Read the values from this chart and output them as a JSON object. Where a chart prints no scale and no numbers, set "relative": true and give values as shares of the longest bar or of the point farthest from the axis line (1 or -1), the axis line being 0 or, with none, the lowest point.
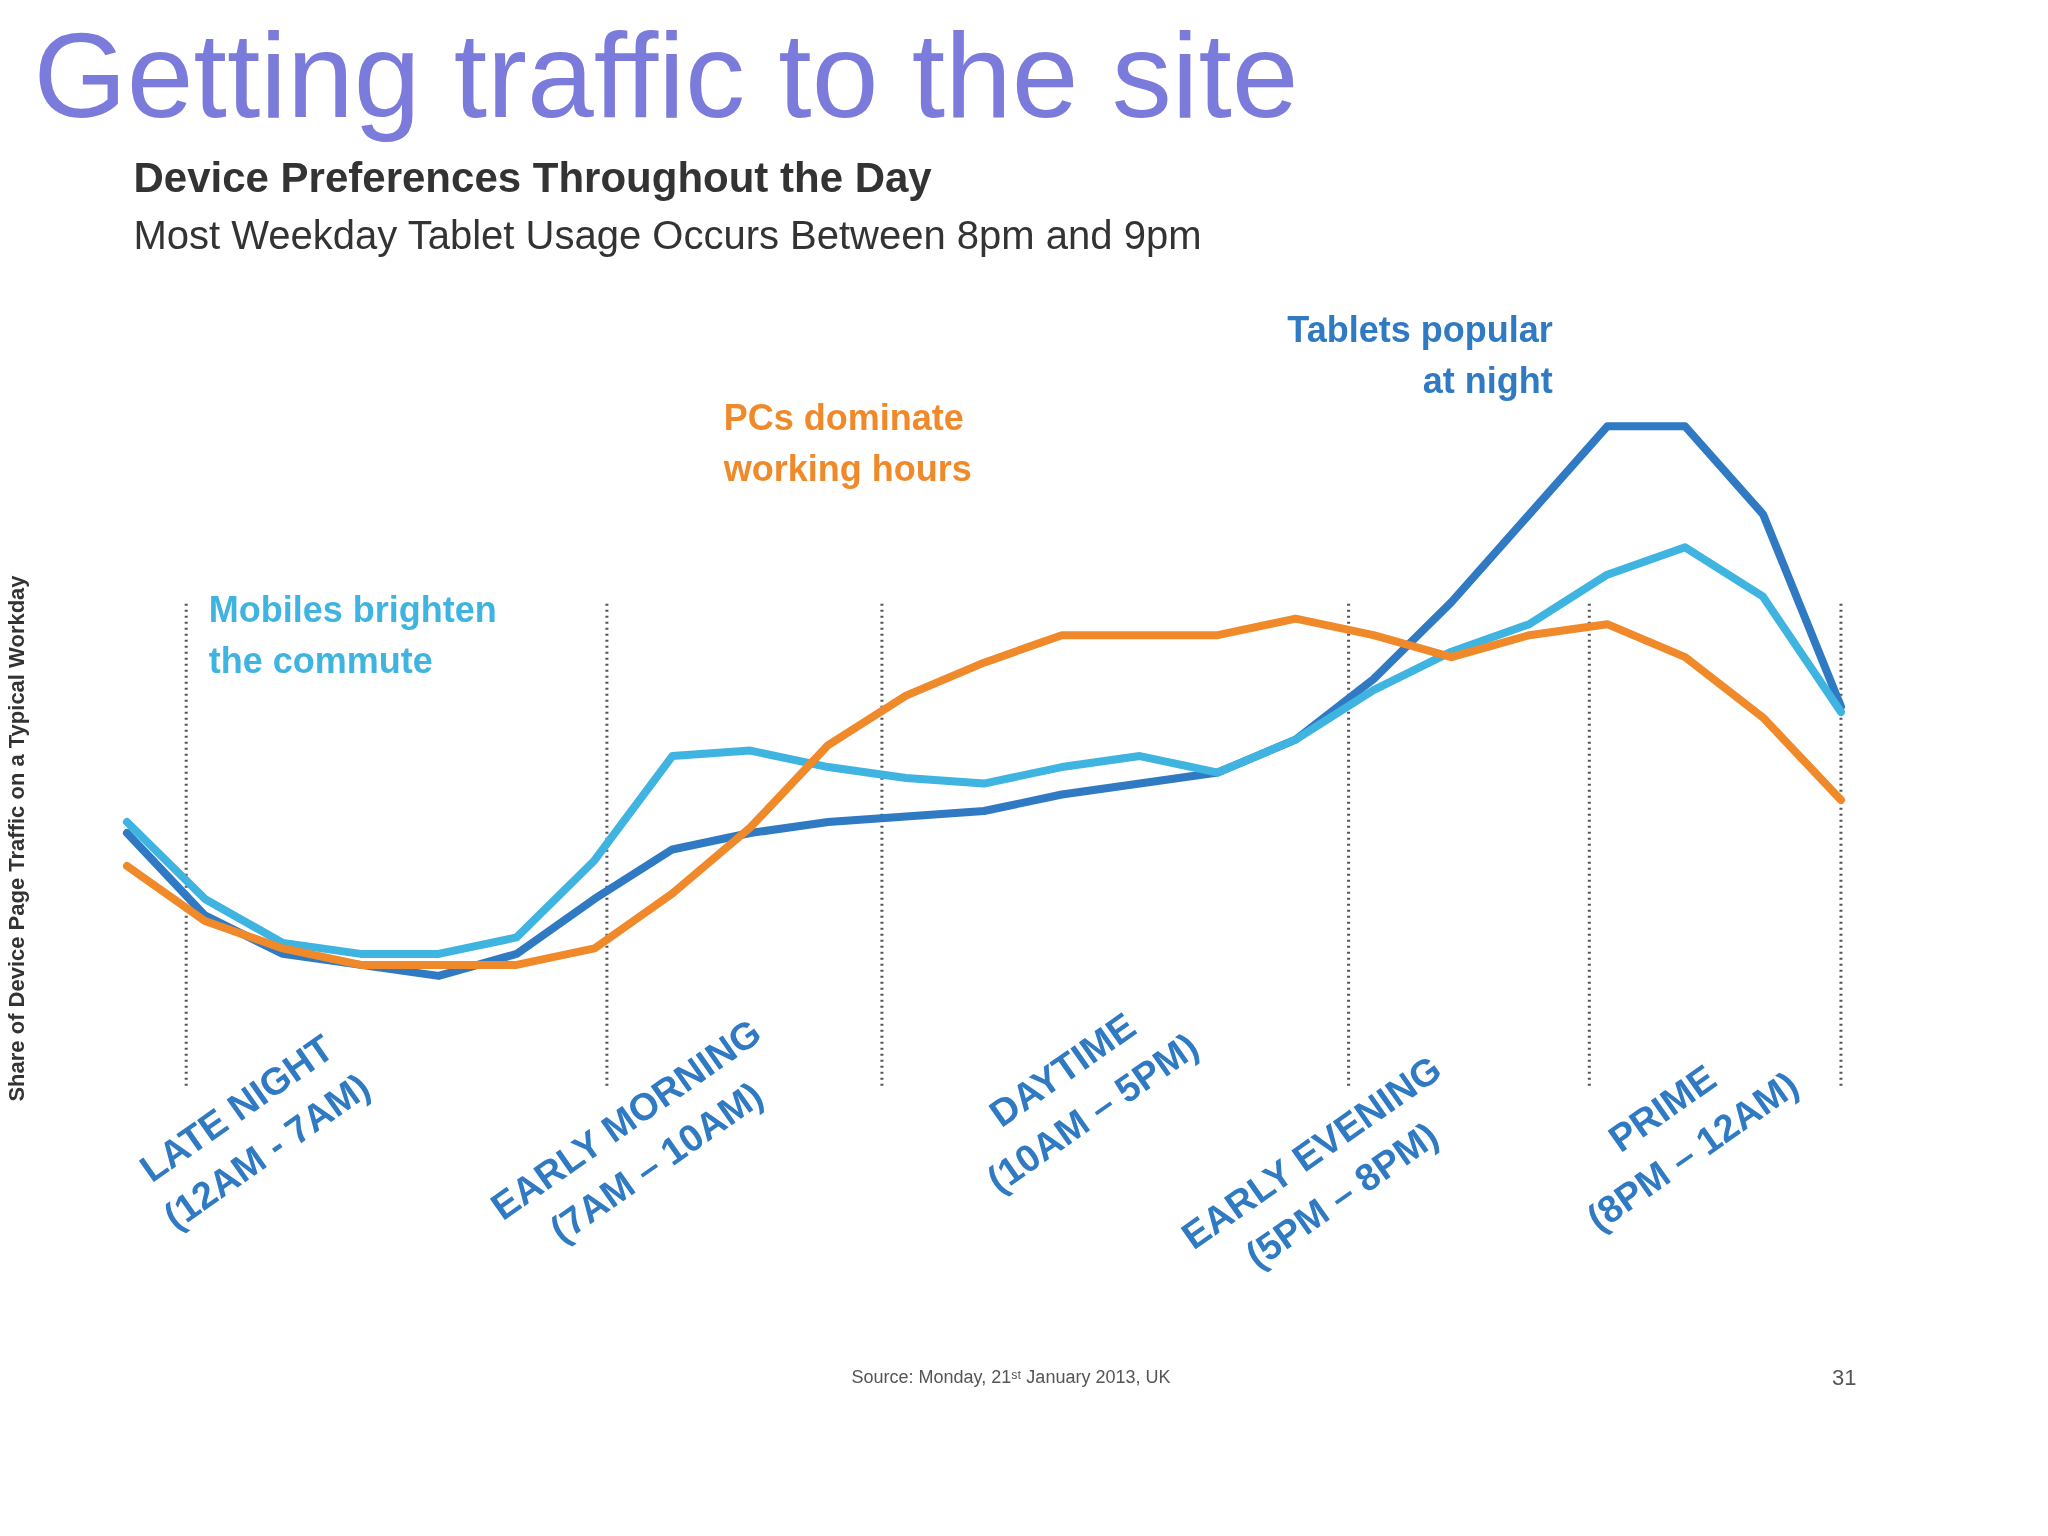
{
  "chart_data": {
    "type": "line",
    "title": "Getting traffic to the site",
    "subtitle": "Device Preferences Throughout the Day",
    "ylabel": "Share of Device Page Traffic on a Typical Workday",
    "relative": true,
    "categories": [
      null,
      null,
      null,
      null,
      null,
      null,
      null,
      null,
      null,
      null,
      null,
      null,
      null,
      null,
      null,
      null,
      null,
      null,
      null,
      null,
      null,
      null,
      null
    ],
    "series": [
      {
        "color": "#2f7ac2",
        "values": [
          0.26,
          0.11,
          0.04,
          0.02,
          0,
          0.04,
          0.14,
          0.23,
          0.26,
          0.28,
          0.29,
          0.3,
          0.33,
          0.35,
          0.37,
          0.43,
          0.54,
          0.68,
          0.84,
          1,
          1,
          0.84,
          0.49
        ]
      },
      {
        "color": "#3fb4e0",
        "values": [
          0.28,
          0.14,
          0.06,
          0.04,
          0.04,
          0.07,
          0.21,
          0.4,
          0.41,
          0.38,
          0.36,
          0.35,
          0.38,
          0.4,
          0.37,
          0.43,
          0.52,
          0.59,
          0.64,
          0.73,
          0.78,
          0.69,
          0.48
        ]
      },
      {
        "color": "#f0892a",
        "values": [
          0.2,
          0.1,
          0.05,
          0.02,
          0.02,
          0.02,
          0.05,
          0.15,
          0.27,
          0.42,
          0.51,
          0.57,
          0.62,
          0.62,
          0.62,
          0.65,
          0.62,
          0.58,
          0.62,
          0.64,
          0.58,
          0.47,
          0.32
        ]
      }
    ],
    "annotations": [
      "Most Weekday Tablet Usage Occurs Between 8pm and 9pm",
      "Mobiles brighten\nthe commute",
      "PCs dominate\nworking hours",
      "Tablets popular\nat night",
      "LATE NIGHT\n(12AM - 7AM)",
      "EARLY MORNING\n(7AM – 10AM)",
      "DAYTIME\n(10AM – 5PM)",
      "EARLY EVENING\n(5PM – 8PM)",
      "PRIME\n(8PM – 12AM)",
      "Source: Monday, 21ˢᵗ January 2013, UK",
      "31"
    ],
    "marker": "none",
    "line_style": "solid"
  }
}
